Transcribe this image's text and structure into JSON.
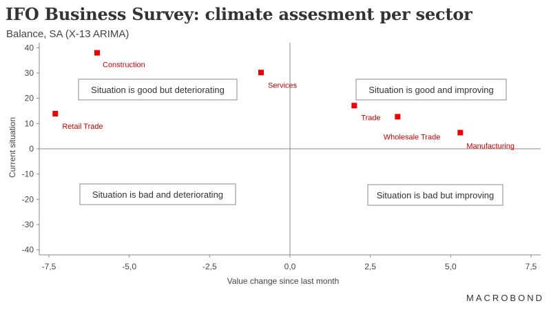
{
  "header": {
    "title": "IFO Business Survey: climate assesment per sector",
    "subtitle": "Balance, SA (X-13 ARIMA)"
  },
  "branding": {
    "logo_text": "MACROBOND"
  },
  "colors": {
    "marker": "#ee0000",
    "label": "#cc0000",
    "axis": "#888888",
    "text": "#333333"
  },
  "chart_data": {
    "type": "scatter",
    "title": "IFO Business Survey: climate assesment per sector",
    "subtitle": "Balance, SA (X-13 ARIMA)",
    "xlabel": "Value change since last month",
    "ylabel": "Current situation",
    "xlim": [
      -7.8,
      7.8
    ],
    "ylim": [
      -42,
      42
    ],
    "xticks": [
      -7.5,
      -5.0,
      -2.5,
      0.0,
      2.5,
      5.0,
      7.5
    ],
    "xtick_labels": [
      "-7,5",
      "-5,0",
      "-2,5",
      "0,0",
      "2,5",
      "5,0",
      "7,5"
    ],
    "yticks": [
      40,
      30,
      20,
      10,
      0,
      -10,
      -20,
      -30,
      -40
    ],
    "ytick_labels": [
      "40",
      "30",
      "20",
      "10",
      "0",
      "-10",
      "-20",
      "-30",
      "-40"
    ],
    "grid": false,
    "points": [
      {
        "name": "Construction",
        "x": -6.0,
        "y": 38.0
      },
      {
        "name": "Services",
        "x": -0.9,
        "y": 30.2
      },
      {
        "name": "Retail Trade",
        "x": -7.3,
        "y": 13.9
      },
      {
        "name": "Trade",
        "x": 2.0,
        "y": 17.1
      },
      {
        "name": "Wholesale Trade",
        "x": 3.35,
        "y": 12.7
      },
      {
        "name": "Manufacturing",
        "x": 5.3,
        "y": 6.4
      }
    ],
    "quadrants": [
      {
        "id": "good-deteriorating",
        "text": "Situation is good but deteriorating"
      },
      {
        "id": "good-improving",
        "text": "Situation is good and improving"
      },
      {
        "id": "bad-deteriorating",
        "text": "Situation is bad and deteriorating"
      },
      {
        "id": "bad-improving",
        "text": "Situation is bad but improving"
      }
    ]
  }
}
